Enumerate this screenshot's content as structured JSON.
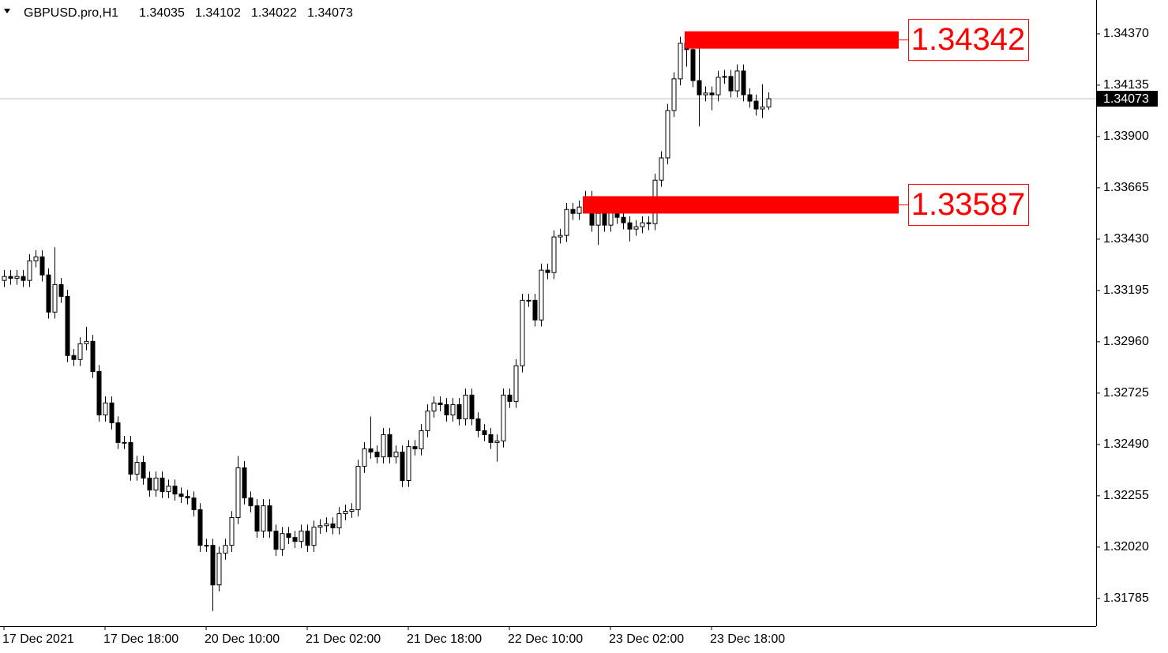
{
  "chart_data": {
    "type": "candlestick",
    "title": "GBPUSD.pro,H1",
    "ohlc_header": [
      1.34035,
      1.34102,
      1.34022,
      1.34073
    ],
    "current_price": 1.34073,
    "levels": [
      {
        "value": 1.34342,
        "color": "#ff0000"
      },
      {
        "value": 1.33587,
        "color": "#ff0000"
      }
    ],
    "ylim": [
      1.31658,
      1.34525
    ],
    "yticks": [
      {
        "value": 1.3437,
        "label": "1.34370"
      },
      1.34135,
      {
        "value": 1.339,
        "label": "1.33900"
      },
      1.33665,
      {
        "value": 1.3343,
        "label": "1.33430"
      },
      1.33195,
      {
        "value": 1.3296,
        "label": "1.32960"
      },
      1.32725,
      {
        "value": 1.3249,
        "label": "1.32490"
      },
      1.32255,
      {
        "value": 1.3202,
        "label": "1.32020"
      },
      1.31785
    ],
    "categories": [
      "17 Dec 2021",
      null,
      null,
      null,
      null,
      null,
      null,
      null,
      null,
      null,
      null,
      null,
      null,
      null,
      null,
      null,
      "17 Dec 18:00",
      null,
      null,
      null,
      null,
      null,
      null,
      null,
      null,
      null,
      null,
      null,
      null,
      null,
      null,
      null,
      "20 Dec 10:00",
      null,
      null,
      null,
      null,
      null,
      null,
      null,
      null,
      null,
      null,
      null,
      null,
      null,
      null,
      null,
      "21 Dec 02:00",
      null,
      null,
      null,
      null,
      null,
      null,
      null,
      null,
      null,
      null,
      null,
      null,
      null,
      null,
      null,
      "21 Dec 18:00",
      null,
      null,
      null,
      null,
      null,
      null,
      null,
      null,
      null,
      null,
      null,
      null,
      null,
      null,
      null,
      "22 Dec 10:00",
      null,
      null,
      null,
      null,
      null,
      null,
      null,
      null,
      null,
      null,
      null,
      null,
      null,
      null,
      null,
      "23 Dec 02:00",
      null,
      null,
      null,
      null,
      null,
      null,
      null,
      null,
      null,
      null,
      null,
      null,
      null,
      null,
      null,
      "23 Dec 18:00",
      null,
      null,
      null,
      null,
      null,
      null,
      null,
      null,
      null
    ],
    "open": [
      1.33241,
      1.33259,
      1.33251,
      1.33259,
      1.33241,
      1.33331,
      1.33349,
      1.33266,
      1.33096,
      1.33222,
      1.33168,
      1.32897,
      1.32879,
      1.32951,
      1.32962,
      1.32824,
      1.32625,
      1.3268,
      1.32589,
      1.32499,
      1.32499,
      1.32354,
      1.32408,
      1.32336,
      1.32281,
      1.32336,
      1.32274,
      1.32299,
      1.32263,
      1.32252,
      1.32245,
      1.32191,
      1.32028,
      1.32028,
      1.31847,
      1.31992,
      1.32028,
      1.32155,
      1.32383,
      1.32245,
      1.32209,
      1.32093,
      1.32209,
      1.32093,
      1.3201,
      1.32082,
      1.32064,
      1.32046,
      1.32093,
      1.32028,
      1.32111,
      1.32118,
      1.32126,
      1.32108,
      1.32173,
      1.32184,
      1.32191,
      1.3239,
      1.3247,
      1.32455,
      1.32433,
      1.32535,
      1.32433,
      1.32455,
      1.32325,
      1.3248,
      1.3247,
      1.32553,
      1.32643,
      1.3268,
      1.32672,
      1.32625,
      1.32672,
      1.32607,
      1.32716,
      1.32607,
      1.32553,
      1.32535,
      1.32499,
      1.32506,
      1.32716,
      1.32687,
      1.3285,
      1.3315,
      1.3315,
      1.3306,
      1.33288,
      1.33277,
      1.3344,
      1.33447,
      1.33566,
      1.33548,
      1.33577,
      1.33621,
      1.33494,
      1.33548,
      1.33494,
      1.33556,
      1.3353,
      1.33505,
      1.33476,
      1.33487,
      1.33505,
      1.33501,
      1.337,
      1.33802,
      1.34019,
      1.34164,
      1.34327,
      1.34298,
      1.34156,
      1.34091,
      1.34099,
      1.34091,
      1.34171,
      1.34175,
      1.34109,
      1.342,
      1.34091,
      1.34062,
      1.34026,
      1.34035
    ],
    "high": [
      1.33289,
      1.33289,
      1.33289,
      1.33289,
      1.33361,
      1.33379,
      1.33379,
      1.33296,
      1.33393,
      1.33252,
      1.33198,
      1.32927,
      1.32981,
      1.33029,
      1.32992,
      1.32854,
      1.3271,
      1.3271,
      1.32619,
      1.32529,
      1.32529,
      1.32438,
      1.32438,
      1.32366,
      1.32366,
      1.32366,
      1.32329,
      1.32329,
      1.32293,
      1.32282,
      1.32275,
      1.32221,
      1.32058,
      1.32058,
      1.32022,
      1.32058,
      1.32185,
      1.32437,
      1.32413,
      1.32275,
      1.32239,
      1.32239,
      1.32239,
      1.32123,
      1.32112,
      1.32112,
      1.32094,
      1.32123,
      1.32123,
      1.32141,
      1.32148,
      1.32156,
      1.32156,
      1.32203,
      1.32214,
      1.32221,
      1.3242,
      1.325,
      1.32618,
      1.32485,
      1.32565,
      1.32565,
      1.32485,
      1.32485,
      1.3251,
      1.3251,
      1.32583,
      1.32673,
      1.3271,
      1.3271,
      1.32702,
      1.32702,
      1.32702,
      1.32746,
      1.32746,
      1.32637,
      1.32583,
      1.32565,
      1.32536,
      1.32746,
      1.32746,
      1.3288,
      1.3318,
      1.3318,
      1.3318,
      1.33318,
      1.33318,
      1.3347,
      1.33477,
      1.33596,
      1.33596,
      1.33607,
      1.33651,
      1.33651,
      1.33578,
      1.33578,
      1.33606,
      1.33586,
      1.3356,
      1.33535,
      1.33517,
      1.33535,
      1.33535,
      1.3373,
      1.33832,
      1.34049,
      1.34194,
      1.34357,
      1.34342,
      1.34328,
      1.3436,
      1.34129,
      1.34129,
      1.34201,
      1.34205,
      1.34205,
      1.3423,
      1.3423,
      1.34121,
      1.34092,
      1.34139,
      1.34102
    ],
    "low": [
      1.33211,
      1.33221,
      1.33221,
      1.33211,
      1.33211,
      1.33301,
      1.33236,
      1.33066,
      1.33066,
      1.33138,
      1.32867,
      1.32849,
      1.32849,
      1.32921,
      1.32794,
      1.32595,
      1.32595,
      1.32559,
      1.32469,
      1.32469,
      1.32324,
      1.32324,
      1.32306,
      1.32251,
      1.32251,
      1.32244,
      1.32244,
      1.32233,
      1.32222,
      1.32215,
      1.32161,
      1.31998,
      1.31998,
      1.31727,
      1.31817,
      1.31962,
      1.31998,
      1.32125,
      1.32215,
      1.32179,
      1.32063,
      1.32063,
      1.32063,
      1.3198,
      1.3198,
      1.32034,
      1.32016,
      1.32016,
      1.31998,
      1.31998,
      1.32081,
      1.32088,
      1.32078,
      1.32078,
      1.32143,
      1.32154,
      1.32161,
      1.3236,
      1.32425,
      1.32403,
      1.32403,
      1.32403,
      1.32403,
      1.32295,
      1.32295,
      1.3244,
      1.3244,
      1.32523,
      1.32613,
      1.32642,
      1.32595,
      1.32595,
      1.32577,
      1.32577,
      1.32577,
      1.32523,
      1.32505,
      1.32469,
      1.32411,
      1.32476,
      1.32657,
      1.32657,
      1.3282,
      1.3312,
      1.3303,
      1.3303,
      1.33247,
      1.33247,
      1.3341,
      1.33417,
      1.33518,
      1.33518,
      1.33547,
      1.33464,
      1.33404,
      1.33464,
      1.33464,
      1.335,
      1.33475,
      1.3342,
      1.33446,
      1.33457,
      1.33471,
      1.33471,
      1.3367,
      1.33772,
      1.33989,
      1.34134,
      1.3422,
      1.34126,
      1.33946,
      1.34061,
      1.3402,
      1.34061,
      1.34141,
      1.34079,
      1.34079,
      1.34061,
      1.34032,
      1.33996,
      1.33985,
      1.34022
    ],
    "close": [
      1.33259,
      1.33251,
      1.33259,
      1.33241,
      1.33331,
      1.33349,
      1.33266,
      1.33096,
      1.33222,
      1.33168,
      1.32897,
      1.32879,
      1.32951,
      1.32962,
      1.32824,
      1.32625,
      1.3268,
      1.32589,
      1.32499,
      1.32499,
      1.32354,
      1.32408,
      1.32336,
      1.32281,
      1.32336,
      1.32274,
      1.32299,
      1.32263,
      1.32252,
      1.32245,
      1.32191,
      1.32028,
      1.32028,
      1.31847,
      1.31992,
      1.32028,
      1.32155,
      1.32383,
      1.32245,
      1.32209,
      1.32093,
      1.32209,
      1.32093,
      1.3201,
      1.32082,
      1.32064,
      1.32046,
      1.32093,
      1.32028,
      1.32111,
      1.32118,
      1.32126,
      1.32108,
      1.32173,
      1.32184,
      1.32191,
      1.3239,
      1.3247,
      1.32455,
      1.32433,
      1.32535,
      1.32433,
      1.32455,
      1.32325,
      1.3248,
      1.3247,
      1.32553,
      1.32643,
      1.3268,
      1.32672,
      1.32625,
      1.32672,
      1.32607,
      1.32716,
      1.32607,
      1.32553,
      1.32535,
      1.32499,
      1.32506,
      1.32716,
      1.32687,
      1.3285,
      1.3315,
      1.3315,
      1.3306,
      1.33288,
      1.33277,
      1.3344,
      1.33447,
      1.33566,
      1.33548,
      1.33577,
      1.33621,
      1.33494,
      1.33548,
      1.33494,
      1.33556,
      1.3353,
      1.33505,
      1.33476,
      1.33487,
      1.33505,
      1.33501,
      1.337,
      1.33802,
      1.34019,
      1.34164,
      1.34327,
      1.34298,
      1.34156,
      1.34091,
      1.34099,
      1.34091,
      1.34171,
      1.34175,
      1.34109,
      1.342,
      1.34091,
      1.34062,
      1.34026,
      1.34035,
      1.34073
    ]
  }
}
